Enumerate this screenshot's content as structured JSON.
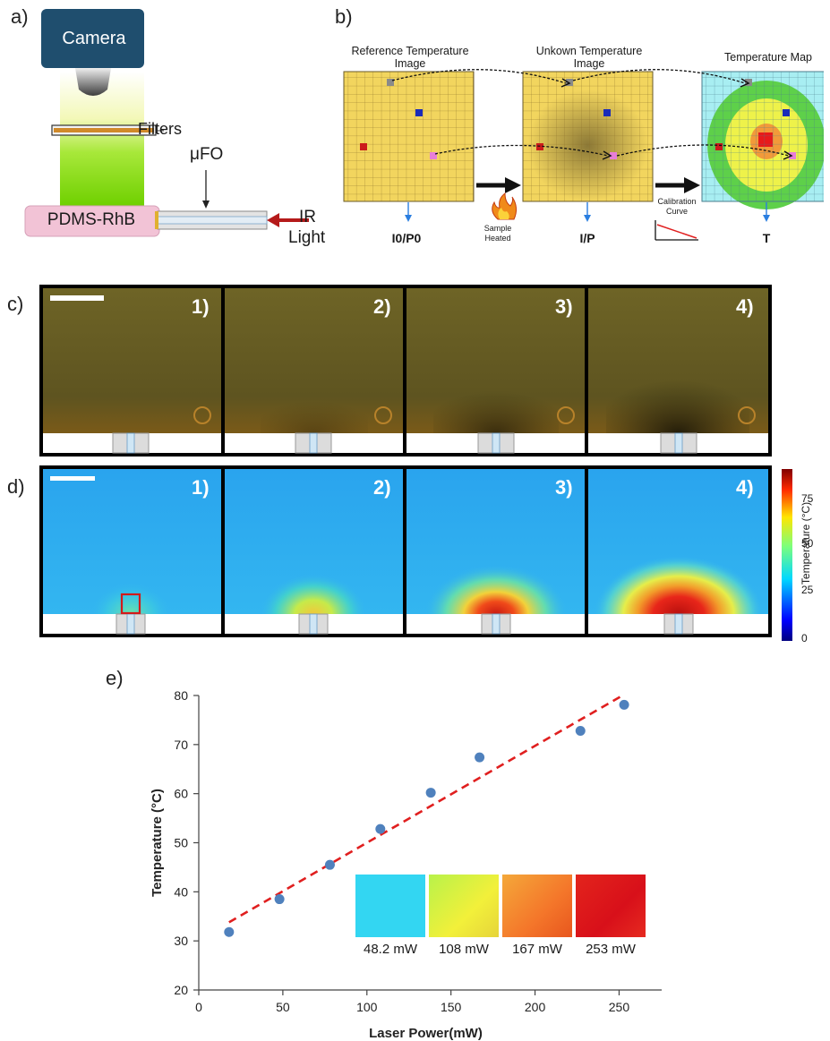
{
  "figure": {
    "panel_a": {
      "letter": "a)",
      "camera_label": "Camera",
      "filters_label": "Filters",
      "ufo_label": "μFO",
      "sample_label": "PDMS-RhB",
      "ir_label_line1": "IR",
      "ir_label_line2": "Light"
    },
    "panel_b": {
      "letter": "b)",
      "ref_title_line1": "Reference Temperature",
      "ref_title_line2": "Image",
      "unk_title_line1": "Unkown Temperature",
      "unk_title_line2": "Image",
      "map_title": "Temperature Map",
      "ref_formula": "I0/P0",
      "unk_formula": "I/P",
      "map_formula": "T",
      "heated_line1": "Sample",
      "heated_line2": "Heated",
      "calib_line1": "Calibration",
      "calib_line2": "Curve"
    },
    "panel_c": {
      "letter": "c)",
      "frames": [
        "1)",
        "2)",
        "3)",
        "4)"
      ]
    },
    "panel_d": {
      "letter": "d)",
      "frames": [
        "1)",
        "2)",
        "3)",
        "4)"
      ],
      "colorbar_title": "Temperature (°C)",
      "colorbar_ticks": [
        "75",
        "50",
        "25",
        "0"
      ]
    },
    "panel_e": {
      "letter": "e)",
      "inset_labels": [
        "48.2 mW",
        "108 mW",
        "167 mW",
        "253 mW"
      ],
      "inset_colors": [
        "#33d6f2",
        "#e7ee3a",
        "#f4862a",
        "#e3141c"
      ]
    },
    "colors": {
      "marker": "#4f81bd",
      "fit_line": "#e01f1f",
      "camera": "#1f4e6e",
      "green_beam": "#7fd400",
      "sample_pink": "#f2c3d6"
    }
  },
  "chart_data": {
    "type": "scatter",
    "xlabel": "Laser Power(mW)",
    "ylabel": "Temperature (°C)",
    "xlim": [
      0,
      270
    ],
    "ylim": [
      20,
      80
    ],
    "xticks": [
      0,
      50,
      100,
      150,
      200,
      250
    ],
    "yticks": [
      20,
      30,
      40,
      50,
      60,
      70,
      80
    ],
    "grid": false,
    "series": [
      {
        "x": [
          18,
          48,
          78,
          108,
          138,
          167,
          227,
          253
        ],
        "y": [
          31.8,
          38.5,
          45.5,
          52.8,
          60.2,
          67.4,
          72.8,
          78.1
        ]
      }
    ],
    "fit": {
      "style": "dashed",
      "x": [
        18,
        253
      ],
      "y": [
        33.8,
        80.2
      ]
    }
  }
}
